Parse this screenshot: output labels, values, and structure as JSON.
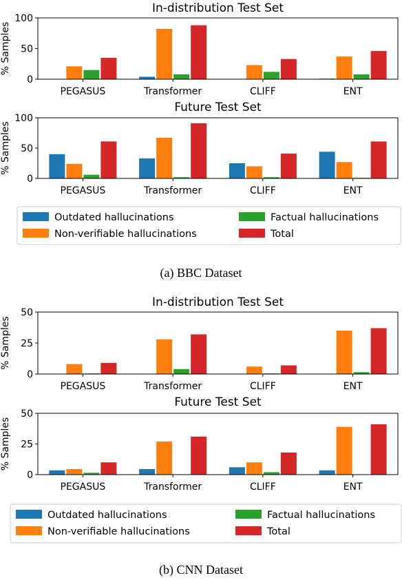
{
  "colors": {
    "outdated": "#1f77b4",
    "nonverifiable": "#ff7f0e",
    "factual": "#2ca02c",
    "total": "#d62728"
  },
  "figures": [
    {
      "caption": "(a) BBC Dataset",
      "legend": [
        {
          "label": "Outdated hallucinations",
          "color": "#1f77b4"
        },
        {
          "label": "Non-verifiable hallucinations",
          "color": "#ff7f0e"
        },
        {
          "label": "Factual hallucinations",
          "color": "#2ca02c"
        },
        {
          "label": "Total",
          "color": "#d62728"
        }
      ]
    },
    {
      "caption": "(b) CNN Dataset",
      "legend": [
        {
          "label": "Outdated hallucinations",
          "color": "#1f77b4"
        },
        {
          "label": "Non-verifiable hallucinations",
          "color": "#ff7f0e"
        },
        {
          "label": "Factual hallucinations",
          "color": "#2ca02c"
        },
        {
          "label": "Total",
          "color": "#d62728"
        }
      ]
    }
  ],
  "chart_data": [
    {
      "type": "bar",
      "figure": "(a) BBC Dataset",
      "title": "In-distribution Test Set",
      "ylabel": "% Samples",
      "ylim": [
        0,
        100
      ],
      "yticks": [
        0,
        50,
        100
      ],
      "categories": [
        "PEGASUS",
        "Transformer",
        "CLIFF",
        "ENT"
      ],
      "series": [
        {
          "name": "Outdated hallucinations",
          "values": [
            0,
            4,
            0,
            1
          ]
        },
        {
          "name": "Non-verifiable hallucinations",
          "values": [
            21,
            82,
            23,
            37
          ]
        },
        {
          "name": "Factual hallucinations",
          "values": [
            15,
            8,
            12,
            8
          ]
        },
        {
          "name": "Total",
          "values": [
            35,
            88,
            33,
            46
          ]
        }
      ]
    },
    {
      "type": "bar",
      "figure": "(a) BBC Dataset",
      "title": "Future Test Set",
      "ylabel": "% Samples",
      "ylim": [
        0,
        100
      ],
      "yticks": [
        0,
        50,
        100
      ],
      "categories": [
        "PEGASUS",
        "Transformer",
        "CLIFF",
        "ENT"
      ],
      "series": [
        {
          "name": "Outdated hallucinations",
          "values": [
            40,
            33,
            25,
            44
          ]
        },
        {
          "name": "Non-verifiable hallucinations",
          "values": [
            24,
            67,
            20,
            27
          ]
        },
        {
          "name": "Factual hallucinations",
          "values": [
            6,
            2,
            2,
            1
          ]
        },
        {
          "name": "Total",
          "values": [
            61,
            91,
            41,
            61
          ]
        }
      ]
    },
    {
      "type": "bar",
      "figure": "(b) CNN Dataset",
      "title": "In-distribution Test Set",
      "ylabel": "% Samples",
      "ylim": [
        0,
        50
      ],
      "yticks": [
        0,
        25,
        50
      ],
      "categories": [
        "PEGASUS",
        "Transformer",
        "CLIFF",
        "ENT"
      ],
      "series": [
        {
          "name": "Outdated hallucinations",
          "values": [
            0,
            0,
            0,
            0
          ]
        },
        {
          "name": "Non-verifiable hallucinations",
          "values": [
            8,
            28,
            6,
            35
          ]
        },
        {
          "name": "Factual hallucinations",
          "values": [
            0.5,
            4,
            0.5,
            1.5
          ]
        },
        {
          "name": "Total",
          "values": [
            9,
            32,
            7,
            37
          ]
        }
      ]
    },
    {
      "type": "bar",
      "figure": "(b) CNN Dataset",
      "title": "Future Test Set",
      "ylabel": "% Samples",
      "ylim": [
        0,
        50
      ],
      "yticks": [
        0,
        25,
        50
      ],
      "categories": [
        "PEGASUS",
        "Transformer",
        "CLIFF",
        "ENT"
      ],
      "series": [
        {
          "name": "Outdated hallucinations",
          "values": [
            3.5,
            4.5,
            6,
            3.5
          ]
        },
        {
          "name": "Non-verifiable hallucinations",
          "values": [
            4.5,
            27,
            10,
            39
          ]
        },
        {
          "name": "Factual hallucinations",
          "values": [
            1.5,
            0,
            2,
            0
          ]
        },
        {
          "name": "Total",
          "values": [
            10,
            31,
            18,
            41
          ]
        }
      ]
    }
  ]
}
